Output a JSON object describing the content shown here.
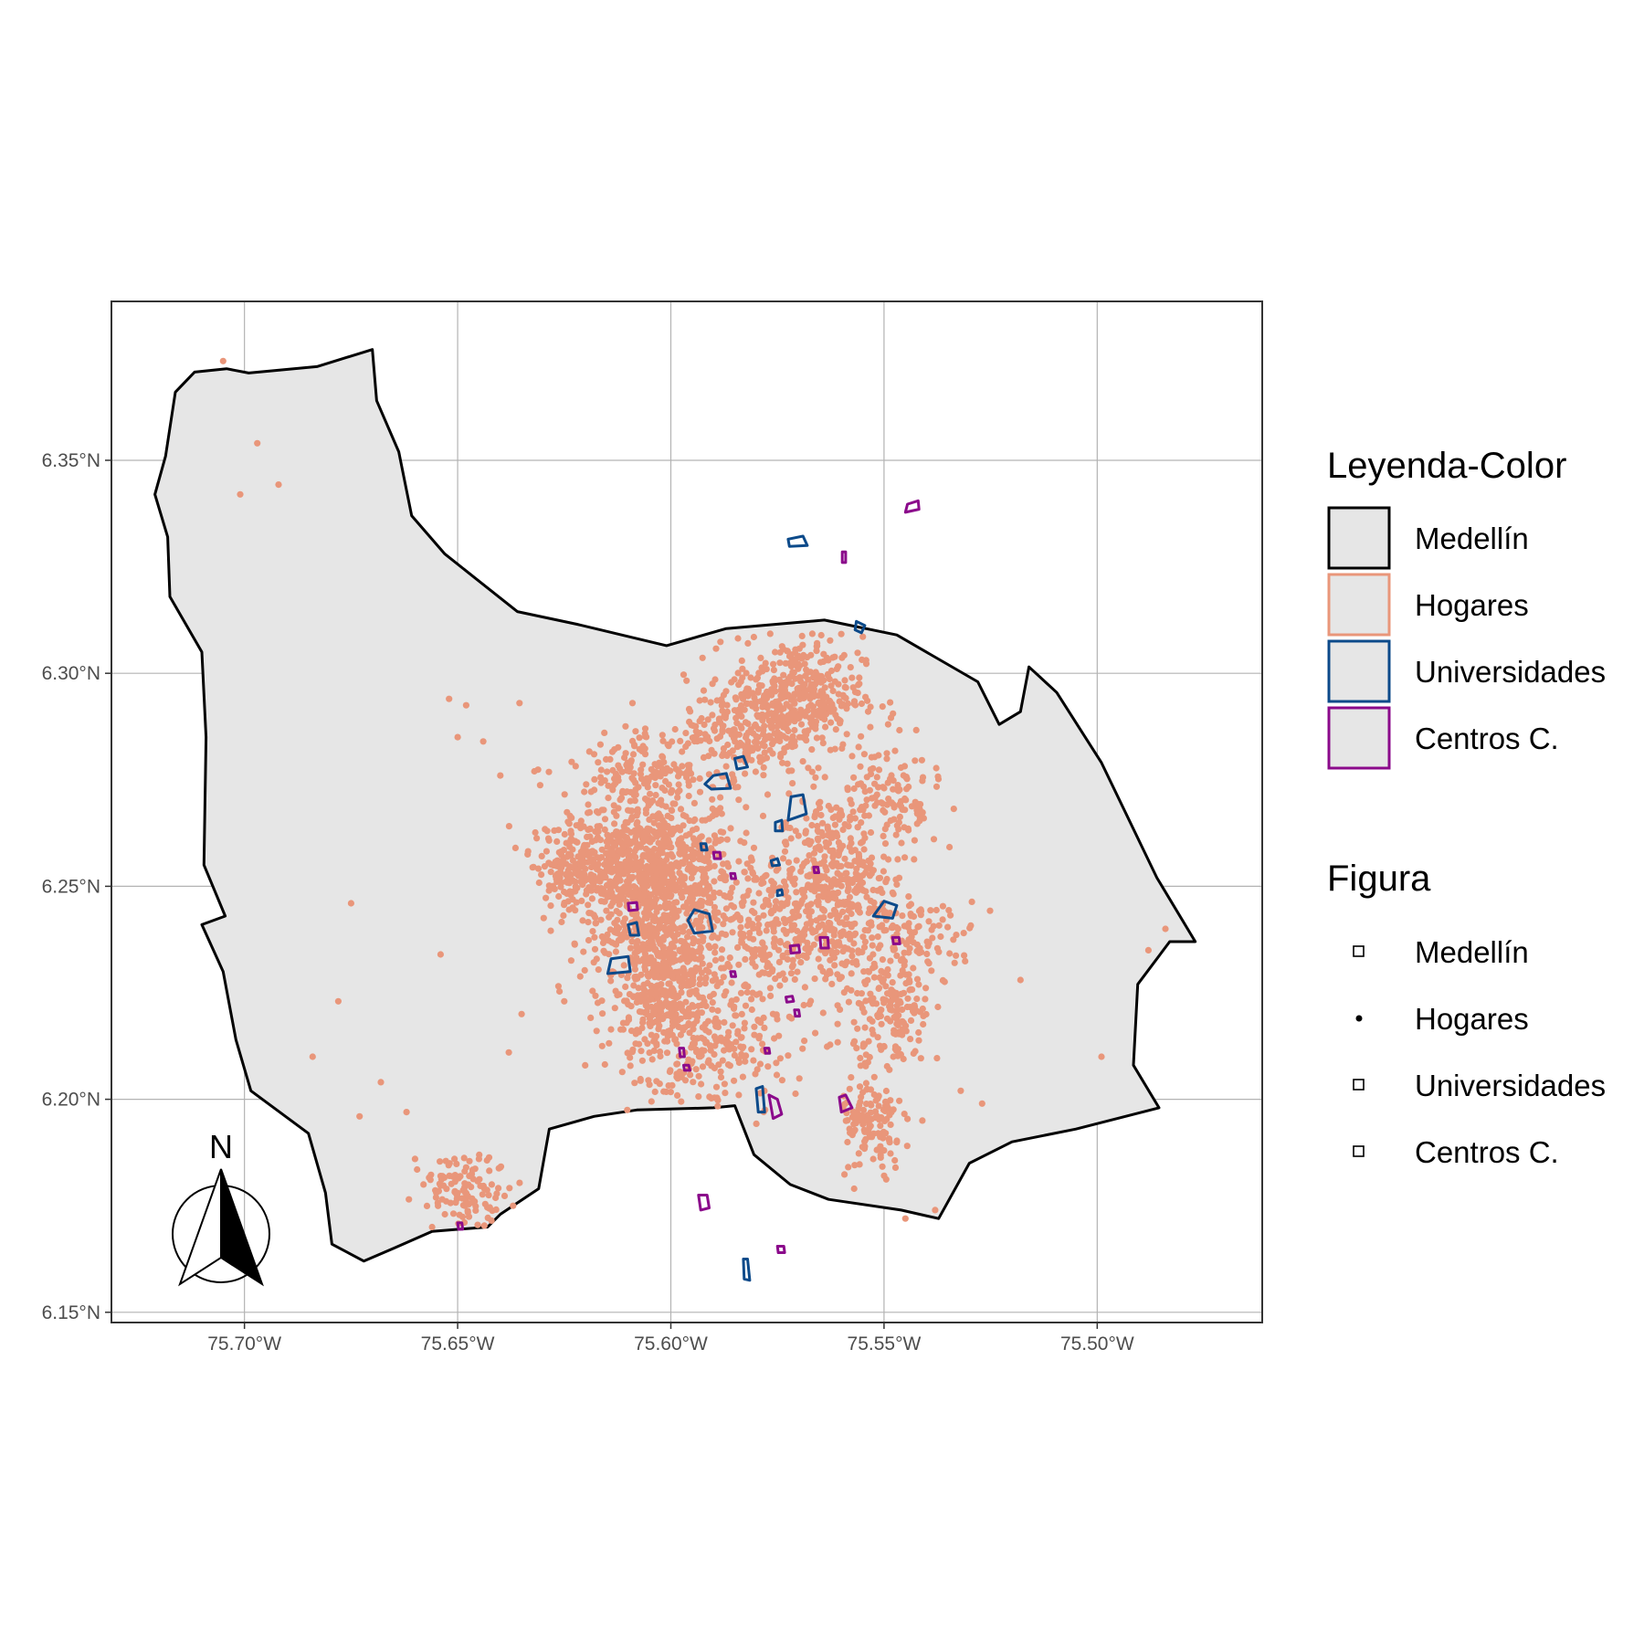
{
  "chart_data": {
    "type": "map",
    "axes": {
      "x_ticks": [
        -75.7,
        -75.65,
        -75.6,
        -75.55,
        -75.5
      ],
      "x_tick_labels": [
        "75.70°W",
        "75.65°W",
        "75.60°W",
        "75.55°W",
        "75.50°W"
      ],
      "y_ticks": [
        6.15,
        6.2,
        6.25,
        6.3,
        6.35
      ],
      "y_tick_labels": [
        "6.15°N",
        "6.20°N",
        "6.25°N",
        "6.30°N",
        "6.35°N"
      ],
      "xlim": [
        -75.7312,
        -75.4613
      ],
      "ylim": [
        6.1476,
        6.3873
      ],
      "grid": true
    },
    "layers": {
      "medellin": {
        "label": "Medellín",
        "fill": "#e6e6e6",
        "stroke": "#000000"
      },
      "hogares": {
        "label": "Hogares",
        "color": "#e9967a"
      },
      "universidades": {
        "label": "Universidades",
        "color": "#0c4a8a"
      },
      "centros": {
        "label": "Centros C.",
        "color": "#8b0a8b"
      }
    },
    "boundary": [
      [
        -75.7117,
        6.3707
      ],
      [
        -75.7042,
        6.3715
      ],
      [
        -75.699,
        6.3705
      ],
      [
        -75.683,
        6.372
      ],
      [
        -75.67,
        6.376
      ],
      [
        -75.669,
        6.364
      ],
      [
        -75.6638,
        6.352
      ],
      [
        -75.6608,
        6.337
      ],
      [
        -75.653,
        6.328
      ],
      [
        -75.636,
        6.3145
      ],
      [
        -75.622,
        6.3115
      ],
      [
        -75.601,
        6.3065
      ],
      [
        -75.587,
        6.3105
      ],
      [
        -75.564,
        6.3125
      ],
      [
        -75.547,
        6.309
      ],
      [
        -75.528,
        6.298
      ],
      [
        -75.523,
        6.288
      ],
      [
        -75.518,
        6.291
      ],
      [
        -75.516,
        6.3015
      ],
      [
        -75.5095,
        6.2955
      ],
      [
        -75.499,
        6.279
      ],
      [
        -75.486,
        6.252
      ],
      [
        -75.477,
        6.237
      ],
      [
        -75.483,
        6.237
      ],
      [
        -75.4905,
        6.227
      ],
      [
        -75.4915,
        6.208
      ],
      [
        -75.4855,
        6.198
      ],
      [
        -75.505,
        6.193
      ],
      [
        -75.52,
        6.19
      ],
      [
        -75.53,
        6.185
      ],
      [
        -75.5372,
        6.172
      ],
      [
        -75.546,
        6.174
      ],
      [
        -75.563,
        6.1765
      ],
      [
        -75.572,
        6.18
      ],
      [
        -75.5805,
        6.187
      ],
      [
        -75.585,
        6.1985
      ],
      [
        -75.59,
        6.198
      ],
      [
        -75.608,
        6.1975
      ],
      [
        -75.618,
        6.196
      ],
      [
        -75.6285,
        6.193
      ],
      [
        -75.631,
        6.179
      ],
      [
        -75.64,
        6.173
      ],
      [
        -75.643,
        6.17
      ],
      [
        -75.656,
        6.169
      ],
      [
        -75.665,
        6.165
      ],
      [
        -75.672,
        6.162
      ],
      [
        -75.6795,
        6.166
      ],
      [
        -75.681,
        6.178
      ],
      [
        -75.685,
        6.192
      ],
      [
        -75.6985,
        6.202
      ],
      [
        -75.702,
        6.214
      ],
      [
        -75.705,
        6.23
      ],
      [
        -75.71,
        6.241
      ],
      [
        -75.7045,
        6.243
      ],
      [
        -75.7095,
        6.255
      ],
      [
        -75.709,
        6.285
      ],
      [
        -75.71,
        6.305
      ],
      [
        -75.7175,
        6.318
      ],
      [
        -75.718,
        6.332
      ],
      [
        -75.721,
        6.342
      ],
      [
        -75.7185,
        6.351
      ],
      [
        -75.7162,
        6.366
      ],
      [
        -75.7117,
        6.3707
      ]
    ],
    "universidades": [
      [
        [
          -75.5725,
          6.3315
        ],
        [
          -75.569,
          6.3322
        ],
        [
          -75.568,
          6.33
        ],
        [
          -75.5722,
          6.3298
        ]
      ],
      [
        [
          -75.5565,
          6.3122
        ],
        [
          -75.5545,
          6.3112
        ],
        [
          -75.5553,
          6.3095
        ],
        [
          -75.5568,
          6.3102
        ]
      ],
      [
        [
          -75.5718,
          6.271
        ],
        [
          -75.569,
          6.2715
        ],
        [
          -75.5682,
          6.267
        ],
        [
          -75.5725,
          6.2655
        ]
      ],
      [
        [
          -75.59,
          6.276
        ],
        [
          -75.587,
          6.2765
        ],
        [
          -75.586,
          6.273
        ],
        [
          -75.5905,
          6.2728
        ],
        [
          -75.592,
          6.274
        ]
      ],
      [
        [
          -75.585,
          6.28
        ],
        [
          -75.583,
          6.2805
        ],
        [
          -75.582,
          6.278
        ],
        [
          -75.5845,
          6.2775
        ]
      ],
      [
        [
          -75.5945,
          6.2445
        ],
        [
          -75.591,
          6.2435
        ],
        [
          -75.5902,
          6.2395
        ],
        [
          -75.5945,
          6.239
        ],
        [
          -75.596,
          6.242
        ]
      ],
      [
        [
          -75.614,
          6.233
        ],
        [
          -75.61,
          6.2335
        ],
        [
          -75.6095,
          6.23
        ],
        [
          -75.6148,
          6.2295
        ]
      ],
      [
        [
          -75.61,
          6.241
        ],
        [
          -75.608,
          6.2415
        ],
        [
          -75.6075,
          6.2385
        ],
        [
          -75.6095,
          6.2385
        ]
      ],
      [
        [
          -75.58,
          6.2025
        ],
        [
          -75.5785,
          6.203
        ],
        [
          -75.578,
          6.197
        ],
        [
          -75.5795,
          6.197
        ]
      ],
      [
        [
          -75.55,
          6.2465
        ],
        [
          -75.547,
          6.2455
        ],
        [
          -75.548,
          6.2425
        ],
        [
          -75.5525,
          6.243
        ]
      ],
      [
        [
          -75.5755,
          6.265
        ],
        [
          -75.574,
          6.2655
        ],
        [
          -75.5738,
          6.263
        ],
        [
          -75.5755,
          6.263
        ]
      ],
      [
        [
          -75.583,
          6.1625
        ],
        [
          -75.582,
          6.1625
        ],
        [
          -75.5815,
          6.1575
        ],
        [
          -75.5828,
          6.1578
        ]
      ],
      [
        [
          -75.5765,
          6.256
        ],
        [
          -75.575,
          6.2565
        ],
        [
          -75.5745,
          6.255
        ],
        [
          -75.5762,
          6.2548
        ]
      ],
      [
        [
          -75.593,
          6.26
        ],
        [
          -75.5918,
          6.26
        ],
        [
          -75.5915,
          6.2585
        ],
        [
          -75.5928,
          6.2585
        ]
      ],
      [
        [
          -75.575,
          6.249
        ],
        [
          -75.574,
          6.2492
        ],
        [
          -75.5738,
          6.248
        ],
        [
          -75.575,
          6.2478
        ]
      ]
    ],
    "centros": [
      [
        [
          -75.5445,
          6.3397
        ],
        [
          -75.542,
          6.3405
        ],
        [
          -75.5418,
          6.3385
        ],
        [
          -75.545,
          6.3378
        ]
      ],
      [
        [
          -75.5598,
          6.3285
        ],
        [
          -75.559,
          6.3285
        ],
        [
          -75.559,
          6.326
        ],
        [
          -75.5598,
          6.326
        ]
      ],
      [
        [
          -75.5605,
          6.2005
        ],
        [
          -75.559,
          6.201
        ],
        [
          -75.5575,
          6.198
        ],
        [
          -75.56,
          6.197
        ]
      ],
      [
        [
          -75.61,
          6.246
        ],
        [
          -75.608,
          6.2462
        ],
        [
          -75.6078,
          6.2445
        ],
        [
          -75.6098,
          6.2443
        ]
      ],
      [
        [
          -75.565,
          6.238
        ],
        [
          -75.5632,
          6.238
        ],
        [
          -75.563,
          6.2355
        ],
        [
          -75.5648,
          6.2355
        ]
      ],
      [
        [
          -75.59,
          6.258
        ],
        [
          -75.5885,
          6.258
        ],
        [
          -75.5883,
          6.2565
        ],
        [
          -75.5898,
          6.2565
        ]
      ],
      [
        [
          -75.5935,
          6.1775
        ],
        [
          -75.5915,
          6.1775
        ],
        [
          -75.591,
          6.1745
        ],
        [
          -75.593,
          6.174
        ]
      ],
      [
        [
          -75.577,
          6.201
        ],
        [
          -75.575,
          6.2
        ],
        [
          -75.574,
          6.1965
        ],
        [
          -75.576,
          6.1955
        ]
      ],
      [
        [
          -75.571,
          6.221
        ],
        [
          -75.57,
          6.221
        ],
        [
          -75.5698,
          6.2195
        ],
        [
          -75.5708,
          6.2195
        ]
      ],
      [
        [
          -75.573,
          6.224
        ],
        [
          -75.5715,
          6.2242
        ],
        [
          -75.5712,
          6.223
        ],
        [
          -75.5728,
          6.2228
        ]
      ],
      [
        [
          -75.572,
          6.236
        ],
        [
          -75.57,
          6.2362
        ],
        [
          -75.5698,
          6.2345
        ],
        [
          -75.5718,
          6.2343
        ]
      ],
      [
        [
          -75.65,
          6.171
        ],
        [
          -75.649,
          6.171
        ],
        [
          -75.6488,
          6.1695
        ],
        [
          -75.6498,
          6.1695
        ]
      ],
      [
        [
          -75.598,
          6.212
        ],
        [
          -75.597,
          6.212
        ],
        [
          -75.5968,
          6.21
        ],
        [
          -75.5978,
          6.21
        ]
      ],
      [
        [
          -75.575,
          6.1655
        ],
        [
          -75.5735,
          6.1655
        ],
        [
          -75.5733,
          6.164
        ],
        [
          -75.5748,
          6.164
        ]
      ],
      [
        [
          -75.548,
          6.238
        ],
        [
          -75.5465,
          6.238
        ],
        [
          -75.5463,
          6.2365
        ],
        [
          -75.5478,
          6.2365
        ]
      ],
      [
        [
          -75.5665,
          6.2545
        ],
        [
          -75.5655,
          6.2545
        ],
        [
          -75.5653,
          6.2532
        ],
        [
          -75.5663,
          6.2532
        ]
      ],
      [
        [
          -75.586,
          6.253
        ],
        [
          -75.585,
          6.253
        ],
        [
          -75.5848,
          6.2518
        ],
        [
          -75.5858,
          6.2518
        ]
      ],
      [
        [
          -75.578,
          6.212
        ],
        [
          -75.577,
          6.212
        ],
        [
          -75.5768,
          6.2108
        ],
        [
          -75.5778,
          6.2108
        ]
      ],
      [
        [
          -75.586,
          6.23
        ],
        [
          -75.585,
          6.23
        ],
        [
          -75.5848,
          6.2288
        ],
        [
          -75.5858,
          6.2288
        ]
      ],
      [
        [
          -75.597,
          6.208
        ],
        [
          -75.5958,
          6.208
        ],
        [
          -75.5955,
          6.2068
        ],
        [
          -75.5968,
          6.2068
        ]
      ]
    ],
    "hogares_points": [
      [
        -75.705,
        6.3733
      ],
      [
        -75.697,
        6.354
      ],
      [
        -75.701,
        6.342
      ],
      [
        -75.692,
        6.3443
      ],
      [
        -75.652,
        6.294
      ],
      [
        -75.648,
        6.2925
      ],
      [
        -75.6355,
        6.293
      ],
      [
        -75.65,
        6.285
      ],
      [
        -75.644,
        6.284
      ],
      [
        -75.675,
        6.246
      ],
      [
        -75.654,
        6.234
      ],
      [
        -75.678,
        6.223
      ],
      [
        -75.684,
        6.21
      ],
      [
        -75.668,
        6.204
      ],
      [
        -75.673,
        6.196
      ],
      [
        -75.662,
        6.197
      ],
      [
        -75.635,
        6.22
      ],
      [
        -75.518,
        6.228
      ],
      [
        -75.499,
        6.21
      ],
      [
        -75.484,
        6.24
      ],
      [
        -75.488,
        6.235
      ],
      [
        -75.527,
        6.199
      ],
      [
        -75.532,
        6.202
      ],
      [
        -75.541,
        6.195
      ],
      [
        -75.55,
        6.188
      ],
      [
        -75.557,
        6.179
      ],
      [
        -75.545,
        6.172
      ],
      [
        -75.538,
        6.174
      ],
      [
        -75.638,
        6.211
      ],
      [
        -75.625,
        6.223
      ],
      [
        -75.632,
        6.277
      ],
      [
        -75.618,
        6.281
      ],
      [
        -75.64,
        6.276
      ],
      [
        -75.629,
        6.263
      ],
      [
        -75.609,
        6.293
      ],
      [
        -75.606,
        6.287
      ],
      [
        -75.626,
        6.252
      ],
      [
        -75.623,
        6.245
      ],
      [
        -75.656,
        6.17
      ],
      [
        -75.654,
        6.182
      ],
      [
        -75.65,
        6.178
      ],
      [
        -75.646,
        6.176
      ],
      [
        -75.642,
        6.18
      ],
      [
        -75.648,
        6.184
      ],
      [
        -75.66,
        6.186
      ],
      [
        -75.637,
        6.175
      ],
      [
        -75.653,
        6.173
      ],
      [
        -75.645,
        6.186
      ],
      [
        -75.64,
        6.184
      ],
      [
        -75.658,
        6.18
      ]
    ],
    "hogares_clusters": [
      {
        "center": [
          -75.604,
          6.252
        ],
        "spread": [
          0.013,
          0.014
        ],
        "count": 900
      },
      {
        "center": [
          -75.601,
          6.225
        ],
        "spread": [
          0.009,
          0.013
        ],
        "count": 500
      },
      {
        "center": [
          -75.57,
          6.295
        ],
        "spread": [
          0.01,
          0.009
        ],
        "count": 380
      },
      {
        "center": [
          -75.562,
          6.248
        ],
        "spread": [
          0.009,
          0.016
        ],
        "count": 480
      },
      {
        "center": [
          -75.583,
          6.287
        ],
        "spread": [
          0.009,
          0.008
        ],
        "count": 200
      },
      {
        "center": [
          -75.621,
          6.255
        ],
        "spread": [
          0.007,
          0.006
        ],
        "count": 200
      },
      {
        "center": [
          -75.548,
          6.22
        ],
        "spread": [
          0.006,
          0.01
        ],
        "count": 170
      },
      {
        "center": [
          -75.553,
          6.193
        ],
        "spread": [
          0.005,
          0.008
        ],
        "count": 120
      },
      {
        "center": [
          -75.606,
          6.278
        ],
        "spread": [
          0.012,
          0.005
        ],
        "count": 150
      },
      {
        "center": [
          -75.578,
          6.24
        ],
        "spread": [
          0.008,
          0.012
        ],
        "count": 200
      },
      {
        "center": [
          -75.549,
          6.27
        ],
        "spread": [
          0.008,
          0.01
        ],
        "count": 140
      },
      {
        "center": [
          -75.588,
          6.21
        ],
        "spread": [
          0.01,
          0.01
        ],
        "count": 160
      },
      {
        "center": [
          -75.648,
          6.179
        ],
        "spread": [
          0.007,
          0.005
        ],
        "count": 110
      },
      {
        "center": [
          -75.54,
          6.238
        ],
        "spread": [
          0.008,
          0.006
        ],
        "count": 80
      }
    ]
  },
  "north_arrow": {
    "label": "N"
  },
  "legends": {
    "color": {
      "title": "Leyenda-Color",
      "items": [
        {
          "label": "Medellín",
          "stroke": "#000000"
        },
        {
          "label": "Hogares",
          "stroke": "#e9967a"
        },
        {
          "label": "Universidades",
          "stroke": "#0c4a8a"
        },
        {
          "label": "Centros C.",
          "stroke": "#8b0a8b"
        }
      ]
    },
    "figura": {
      "title": "Figura",
      "items": [
        {
          "label": "Medellín",
          "icon": "square-icon"
        },
        {
          "label": "Hogares",
          "icon": "dot-icon"
        },
        {
          "label": "Universidades",
          "icon": "square-icon"
        },
        {
          "label": "Centros C.",
          "icon": "square-icon"
        }
      ]
    }
  }
}
